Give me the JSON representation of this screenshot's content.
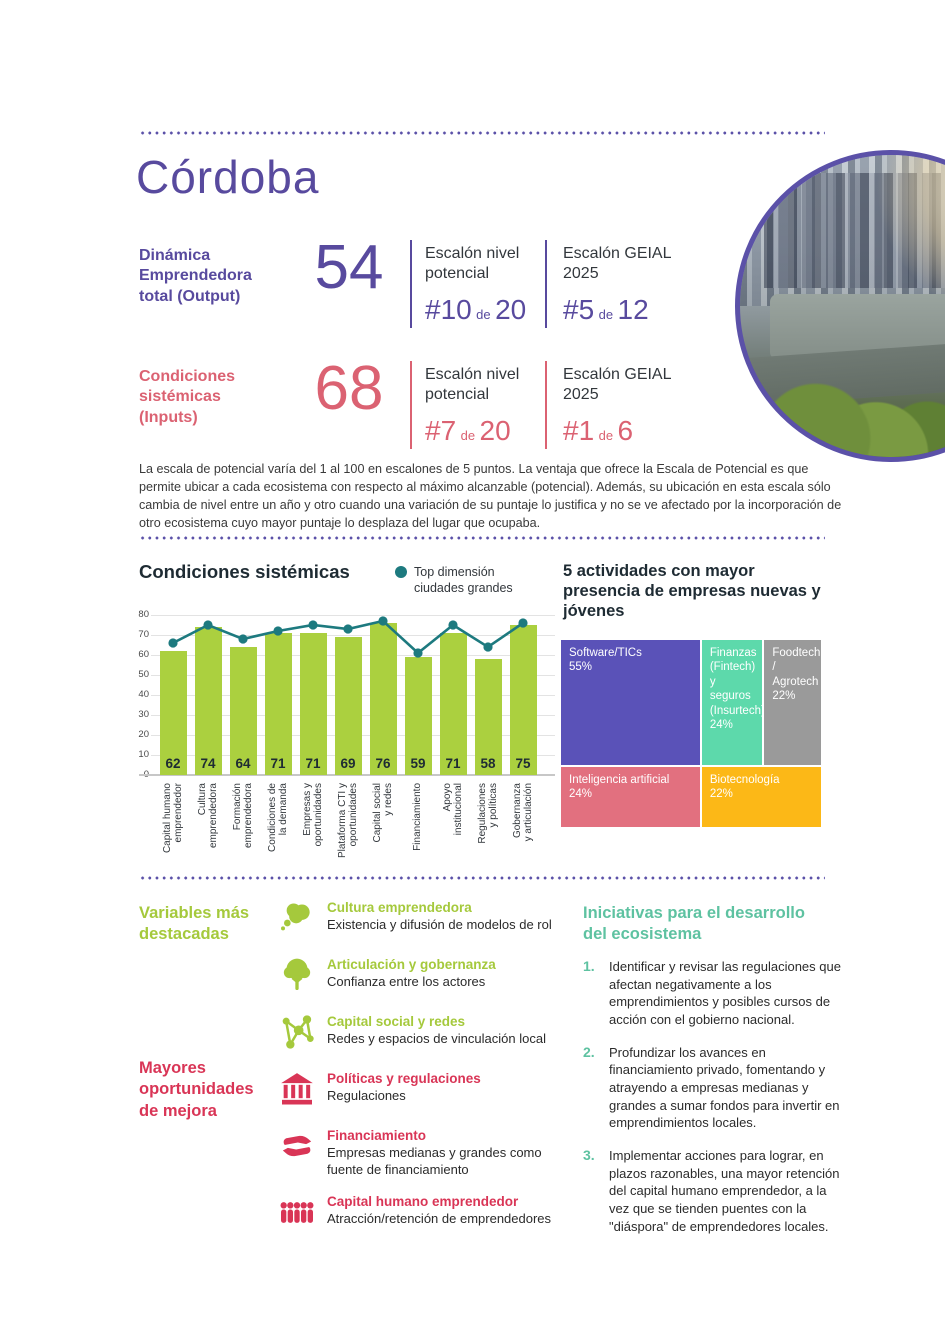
{
  "page": {
    "title": "Córdoba"
  },
  "metrics": [
    {
      "label": "Dinámica\nEmprendedora\ntotal (Output)",
      "value": "54",
      "color": "#584a9e",
      "cols": [
        {
          "title": "Escalón nivel\npotencial",
          "rank": "#10",
          "de": "de",
          "total": "20"
        },
        {
          "title": "Escalón GEIAL\n2025",
          "rank": "#5",
          "de": "de",
          "total": "12"
        }
      ]
    },
    {
      "label": "Condiciones\nsistémicas\n(Inputs)",
      "value": "68",
      "color": "#db6272",
      "cols": [
        {
          "title": "Escalón nivel\npotencial",
          "rank": "#7",
          "de": "de",
          "total": "20"
        },
        {
          "title": "Escalón GEIAL\n2025",
          "rank": "#1",
          "de": "de",
          "total": "6"
        }
      ]
    }
  ],
  "note": "La escala de potencial varía del 1 al 100 en escalones de 5 puntos. La ventaja que ofrece la Escala de Potencial es que permite ubicar a cada ecosistema con respecto al máximo alcanzable (potencial). Además, su ubicación en esta escala sólo cambia de nivel entre un año y otro cuando una variación de su puntaje lo justifica y no se ve afectado por la incorporación de otro ecosistema cuyo mayor puntaje lo desplaza del lugar que ocupaba.",
  "chart_data": [
    {
      "type": "bar",
      "title": "Condiciones sistémicas",
      "legend": [
        {
          "label": "Top dimensión\nciudades grandes",
          "marker_color": "#1d7a7f"
        }
      ],
      "categories": [
        "Capital humano\nemprendedor",
        "Cultura\nemprendedora",
        "Formación\nemprendedora",
        "Condiciones de\nla demanda",
        "Empresas y\noportunidades",
        "Plataforma CTI y\noportunidades",
        "Capital social\ny redes",
        "Financiamiento",
        "Apoyo\ninstitucional",
        "Regulaciones\ny políticas",
        "Gobernanza\ny articulación"
      ],
      "series": [
        {
          "name": "Córdoba",
          "render": "bar",
          "color": "#abd03f",
          "values": [
            62,
            74,
            64,
            71,
            71,
            69,
            76,
            59,
            71,
            58,
            75
          ]
        },
        {
          "name": "Top dimensión ciudades grandes",
          "render": "line",
          "color": "#1d7a7f",
          "values": [
            66,
            75,
            68,
            72,
            75,
            73,
            77,
            61,
            75,
            64,
            76
          ]
        }
      ],
      "xlabel": "",
      "ylabel": "",
      "ylim": [
        0,
        80
      ],
      "ytick_step": 10,
      "grid": true,
      "legend_position": "top-right"
    },
    {
      "type": "treemap",
      "title": "5 actividades con mayor presencia de empresas nuevas y jóvenes",
      "cells": [
        {
          "label": "Software/TICs",
          "pct": "55%",
          "value": 55,
          "color": "#5a52b8",
          "area": "a"
        },
        {
          "label": "Finanzas (Fintech) y seguros (Insurtech)",
          "pct": "24%",
          "value": 24,
          "color": "#5dd9ab",
          "area": "b"
        },
        {
          "label": "Foodtech / Agrotech",
          "pct": "22%",
          "value": 22,
          "color": "#9a9a9a",
          "area": "c"
        },
        {
          "label": "Inteligencia artificial",
          "pct": "24%",
          "value": 24,
          "color": "#e2707f",
          "area": "d"
        },
        {
          "label": "Biotecnología",
          "pct": "22%",
          "value": 22,
          "color": "#fcb817",
          "area": "e"
        }
      ]
    }
  ],
  "highlights": {
    "heading_top": "Variables más\ndestacadas",
    "heading_bottom": "Mayores\noportunidades\nde mejora",
    "items": [
      {
        "icon": "thought-bubble-icon",
        "color": "#a5c93c",
        "title": "Cultura emprendedora",
        "desc": "Existencia y difusión de modelos de rol"
      },
      {
        "icon": "tree-icon",
        "color": "#a5c93c",
        "title": "Articulación y gobernanza",
        "desc": "Confianza entre los actores"
      },
      {
        "icon": "network-icon",
        "color": "#a5c93c",
        "title": "Capital social y redes",
        "desc": "Redes y espacios de vinculación local"
      },
      {
        "icon": "bank-icon",
        "color": "#d93556",
        "title": "Políticas y regulaciones",
        "desc": "Regulaciones"
      },
      {
        "icon": "hands-icon",
        "color": "#d93556",
        "title": "Financiamiento",
        "desc": "Empresas medianas y grandes como fuente de financiamiento"
      },
      {
        "icon": "people-icon",
        "color": "#d93556",
        "title": "Capital humano emprendedor",
        "desc": "Atracción/retención de emprendedores"
      }
    ]
  },
  "initiatives": {
    "heading": "Iniciativas para el desarrollo\ndel ecosistema",
    "items": [
      {
        "num": "1.",
        "text": "Identificar y revisar las regulaciones que afectan negativamente a los emprendimientos y posibles cursos de acción con el gobierno nacional."
      },
      {
        "num": "2.",
        "text": "Profundizar los avances en financiamiento privado, fomentando y atrayendo a empresas medianas y grandes a sumar fondos para invertir en emprendimientos locales."
      },
      {
        "num": "3.",
        "text": "Implementar acciones para lograr, en plazos razonables, una mayor retención del capital humano emprendedor, a la vez que se tienden puentes con la \"diáspora\" de emprendedores locales."
      }
    ]
  }
}
